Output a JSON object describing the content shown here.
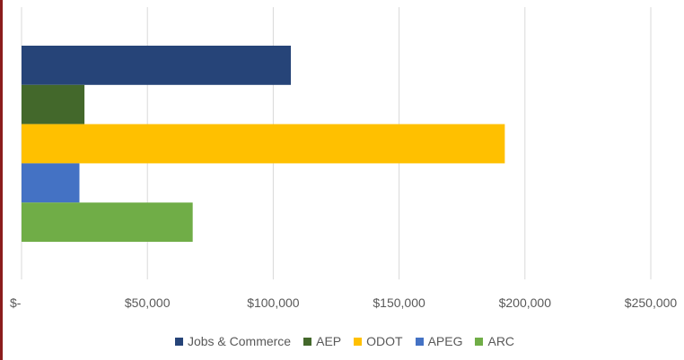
{
  "chart_data": {
    "type": "bar",
    "orientation": "horizontal",
    "title": "",
    "xlabel": "",
    "ylabel": "",
    "xlim": [
      0,
      250000
    ],
    "x_ticks": [
      0,
      50000,
      100000,
      150000,
      200000,
      250000
    ],
    "x_tick_labels": [
      "$-",
      "$50,000",
      "$100,000",
      "$150,000",
      "$200,000",
      "$250,000"
    ],
    "grid": "vertical",
    "legend_position": "bottom",
    "series": [
      {
        "name": "Jobs & Commerce",
        "value": 107000,
        "color": "#264478"
      },
      {
        "name": "AEP",
        "value": 25000,
        "color": "#43682B"
      },
      {
        "name": "ODOT",
        "value": 192000,
        "color": "#FFC000"
      },
      {
        "name": "APEG",
        "value": 23000,
        "color": "#4472C4"
      },
      {
        "name": "ARC",
        "value": 68000,
        "color": "#70AD47"
      }
    ]
  }
}
